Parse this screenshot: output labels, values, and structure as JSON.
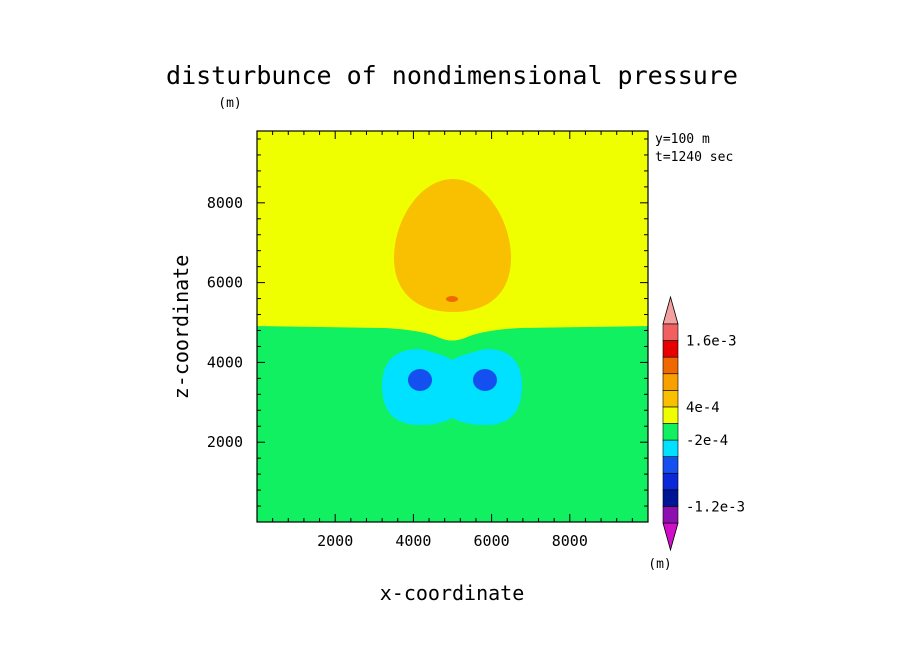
{
  "chart_data": {
    "type": "contour",
    "title": "disturbunce of nondimensional pressure",
    "xlabel": "x-coordinate",
    "ylabel": "z-coordinate",
    "y_unit": "(m)",
    "colorbar_unit": "(m)",
    "annotations": [
      "y=100 m",
      "t=1240 sec"
    ],
    "xlim": [
      0,
      10000
    ],
    "ylim": [
      0,
      9800
    ],
    "x_ticks": [
      2000,
      4000,
      6000,
      8000
    ],
    "y_ticks": [
      2000,
      4000,
      6000,
      8000
    ],
    "x_tick_labels": [
      "2000",
      "4000",
      "6000",
      "8000"
    ],
    "y_tick_labels": [
      "2000",
      "4000",
      "6000",
      "8000"
    ],
    "field": {
      "background_level": "-2e-4..2e-4",
      "upper_layer": {
        "z_from": 5000,
        "level": "2e-4..4e-4"
      },
      "warm_bubble": {
        "x_center": 5000,
        "z_range": [
          4700,
          8700
        ],
        "level": "4e-4..6e-4"
      },
      "inner_peak": {
        "x": 5000,
        "z": 5700,
        "level": "6e-4..8e-4"
      },
      "low_lobe_outer": {
        "x_range": [
          3500,
          6500
        ],
        "z_range": [
          2500,
          4700
        ],
        "level": "-4e-4..-2e-4"
      },
      "low_cores": [
        {
          "x": 4200,
          "z": 3700,
          "level": "-8e-4..-6e-4"
        },
        {
          "x": 5800,
          "z": 3700,
          "level": "-8e-4..-6e-4"
        }
      ]
    },
    "colorbar": {
      "levels": [
        {
          "color": "#d010c8"
        },
        {
          "color": "#8c10b0"
        },
        {
          "color": "#001496",
          "label": "-1.2e-3"
        },
        {
          "color": "#0a28d8"
        },
        {
          "color": "#1450f0"
        },
        {
          "color": "#00e0ff"
        },
        {
          "color": "#10f060",
          "label": "-2e-4"
        },
        {
          "color": "#f0ff00"
        },
        {
          "color": "#f8c000",
          "label": "4e-4"
        },
        {
          "color": "#f8a000"
        },
        {
          "color": "#f06800"
        },
        {
          "color": "#e80000"
        },
        {
          "color": "#f06060",
          "label": "1.6e-3"
        },
        {
          "color": "#f4a0a0"
        }
      ]
    }
  }
}
